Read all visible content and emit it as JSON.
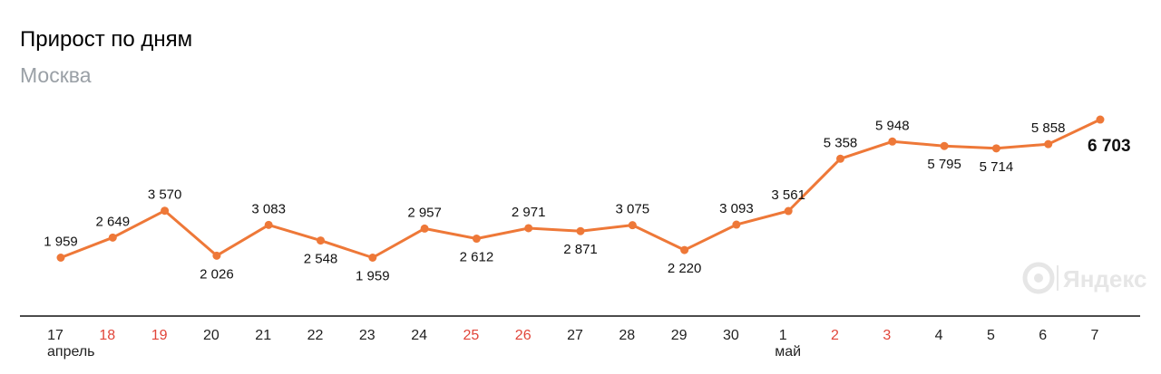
{
  "chart_data": {
    "type": "line",
    "title": "Прирост по дням",
    "subtitle": "Москва",
    "xlabel": "",
    "ylabel": "",
    "categories": [
      "17",
      "18",
      "19",
      "20",
      "21",
      "22",
      "23",
      "24",
      "25",
      "26",
      "27",
      "28",
      "29",
      "30",
      "1",
      "2",
      "3",
      "4",
      "5",
      "6",
      "7"
    ],
    "weekend_categories": [
      "18",
      "19",
      "25",
      "26",
      "2",
      "3"
    ],
    "months": [
      {
        "label": "апрель",
        "at": "17"
      },
      {
        "label": "май",
        "at": "1"
      }
    ],
    "series": [
      {
        "values": [
          1959,
          2649,
          3570,
          2026,
          3083,
          2548,
          1959,
          2957,
          2612,
          2971,
          2871,
          3075,
          2220,
          3093,
          3561,
          5358,
          5948,
          5795,
          5714,
          5858,
          6703
        ],
        "labels": [
          "1 959",
          "2 649",
          "3 570",
          "2 026",
          "3 083",
          "2 548",
          "1 959",
          "2 957",
          "2 612",
          "2 971",
          "2 871",
          "3 075",
          "2 220",
          "3 093",
          "3 561",
          "5 358",
          "5 948",
          "5 795",
          "5 714",
          "5 858",
          "6 703"
        ],
        "label_position": [
          "above",
          "above",
          "above",
          "below",
          "above",
          "below",
          "below",
          "above",
          "below",
          "above",
          "below",
          "above",
          "below",
          "above",
          "above",
          "above",
          "above",
          "below",
          "below",
          "above",
          "right"
        ]
      }
    ],
    "grid": false,
    "legend": "none",
    "colors": {
      "line": "#ee7838",
      "weekend": "#e1453a",
      "last_label": "#e1453a",
      "axis": "#111111",
      "tick": "#222222"
    }
  },
  "watermark": {
    "text": "Яндекс",
    "icon": "yandex-logo-icon"
  }
}
